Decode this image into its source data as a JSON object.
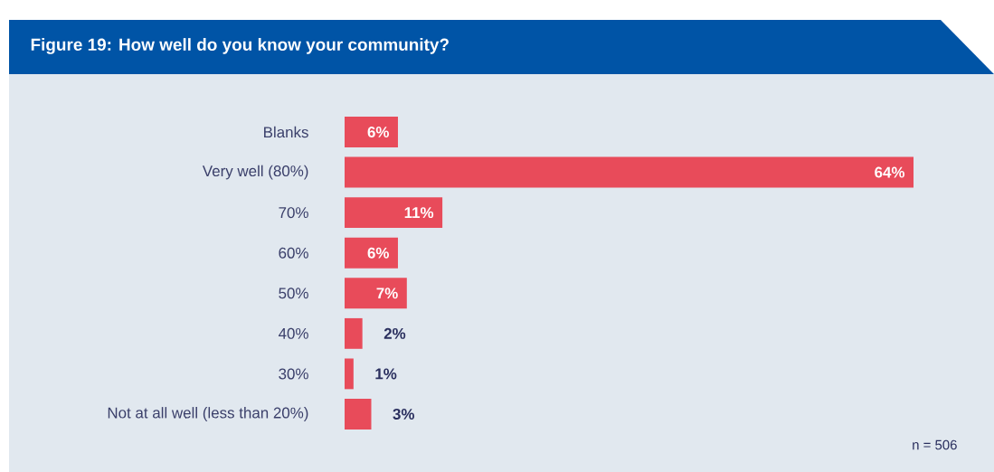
{
  "chart_data": {
    "type": "bar",
    "orientation": "horizontal",
    "title": "Figure 19: How well do you know your community?",
    "categories": [
      "Blanks",
      "Very well (80%)",
      "70%",
      "60%",
      "50%",
      "40%",
      "30%",
      "Not at all well (less than 20%)"
    ],
    "values": [
      6,
      64,
      11,
      6,
      7,
      2,
      1,
      3
    ],
    "value_labels": [
      "6%",
      "64%",
      "11%",
      "6%",
      "7%",
      "2%",
      "1%",
      "3%"
    ],
    "color": "#e84b5a",
    "annotations": [
      "n = 506"
    ]
  }
}
